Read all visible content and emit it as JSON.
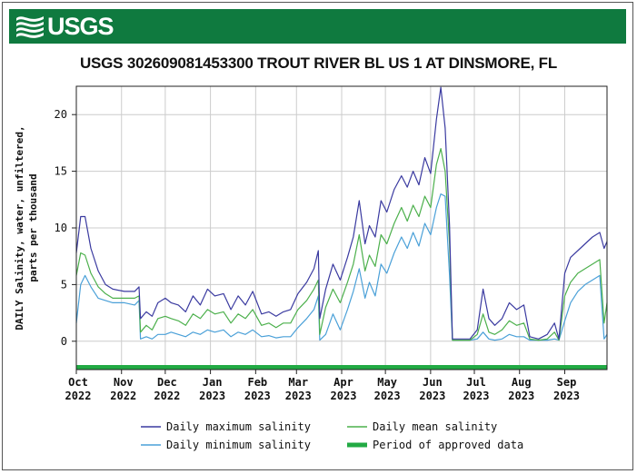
{
  "header": {
    "agency": "USGS",
    "logo_icon": "usgs-wave-logo-icon",
    "bar_color": "#0f7a3f"
  },
  "chart_data": {
    "type": "line",
    "title": "USGS 302609081453300 TROUT RIVER BL US 1 AT DINSMORE, FL",
    "ylabel": [
      "DAILY Salinity, water, unfiltered,",
      "parts per thousand"
    ],
    "xlabel": "",
    "ylim": [
      -2.5,
      22.5
    ],
    "xlim": [
      "2022-10-01",
      "2023-09-30"
    ],
    "grid": true,
    "yticks": [
      0,
      5,
      10,
      15,
      20
    ],
    "xticks": [
      {
        "date": "2022-10-01",
        "month": "Oct",
        "year": "2022"
      },
      {
        "date": "2022-11-01",
        "month": "Nov",
        "year": "2022"
      },
      {
        "date": "2022-12-01",
        "month": "Dec",
        "year": "2022"
      },
      {
        "date": "2023-01-01",
        "month": "Jan",
        "year": "2023"
      },
      {
        "date": "2023-02-01",
        "month": "Feb",
        "year": "2023"
      },
      {
        "date": "2023-03-01",
        "month": "Mar",
        "year": "2023"
      },
      {
        "date": "2023-04-01",
        "month": "Apr",
        "year": "2023"
      },
      {
        "date": "2023-05-01",
        "month": "May",
        "year": "2023"
      },
      {
        "date": "2023-06-01",
        "month": "Jun",
        "year": "2023"
      },
      {
        "date": "2023-07-01",
        "month": "Jul",
        "year": "2023"
      },
      {
        "date": "2023-08-01",
        "month": "Aug",
        "year": "2023"
      },
      {
        "date": "2023-09-01",
        "month": "Sep",
        "year": "2023"
      }
    ],
    "series": [
      {
        "name": "Daily maximum salinity",
        "color": "#3a3aa0",
        "points": [
          [
            "2022-10-01",
            7.8
          ],
          [
            "2022-10-04",
            11.0
          ],
          [
            "2022-10-07",
            11.0
          ],
          [
            "2022-10-11",
            8.2
          ],
          [
            "2022-10-16",
            6.2
          ],
          [
            "2022-10-21",
            5.0
          ],
          [
            "2022-10-26",
            4.6
          ],
          [
            "2022-11-03",
            4.4
          ],
          [
            "2022-11-10",
            4.4
          ],
          [
            "2022-11-13",
            4.8
          ],
          [
            "2022-11-14",
            2.0
          ],
          [
            "2022-11-18",
            2.6
          ],
          [
            "2022-11-22",
            2.2
          ],
          [
            "2022-11-26",
            3.4
          ],
          [
            "2022-12-01",
            3.8
          ],
          [
            "2022-12-05",
            3.4
          ],
          [
            "2022-12-10",
            3.2
          ],
          [
            "2022-12-15",
            2.6
          ],
          [
            "2022-12-20",
            4.0
          ],
          [
            "2022-12-25",
            3.2
          ],
          [
            "2022-12-30",
            4.6
          ],
          [
            "2023-01-04",
            4.0
          ],
          [
            "2023-01-10",
            4.2
          ],
          [
            "2023-01-15",
            2.8
          ],
          [
            "2023-01-20",
            4.0
          ],
          [
            "2023-01-25",
            3.2
          ],
          [
            "2023-01-30",
            4.4
          ],
          [
            "2023-02-05",
            2.4
          ],
          [
            "2023-02-10",
            2.6
          ],
          [
            "2023-02-15",
            2.2
          ],
          [
            "2023-02-20",
            2.6
          ],
          [
            "2023-02-25",
            2.8
          ],
          [
            "2023-03-02",
            4.2
          ],
          [
            "2023-03-08",
            5.2
          ],
          [
            "2023-03-13",
            6.4
          ],
          [
            "2023-03-16",
            8.0
          ],
          [
            "2023-03-17",
            2.0
          ],
          [
            "2023-03-21",
            4.6
          ],
          [
            "2023-03-26",
            6.8
          ],
          [
            "2023-03-31",
            5.4
          ],
          [
            "2023-04-05",
            7.4
          ],
          [
            "2023-04-09",
            9.2
          ],
          [
            "2023-04-13",
            12.4
          ],
          [
            "2023-04-17",
            8.6
          ],
          [
            "2023-04-20",
            10.2
          ],
          [
            "2023-04-24",
            9.2
          ],
          [
            "2023-04-28",
            12.4
          ],
          [
            "2023-05-02",
            11.4
          ],
          [
            "2023-05-07",
            13.4
          ],
          [
            "2023-05-12",
            14.6
          ],
          [
            "2023-05-16",
            13.6
          ],
          [
            "2023-05-20",
            15.0
          ],
          [
            "2023-05-24",
            13.8
          ],
          [
            "2023-05-28",
            16.2
          ],
          [
            "2023-06-01",
            14.8
          ],
          [
            "2023-06-05",
            19.6
          ],
          [
            "2023-06-08",
            22.4
          ],
          [
            "2023-06-11",
            18.8
          ],
          [
            "2023-06-14",
            10.2
          ],
          [
            "2023-06-16",
            0.2
          ],
          [
            "2023-06-22",
            0.2
          ],
          [
            "2023-06-28",
            0.2
          ],
          [
            "2023-07-03",
            1.0
          ],
          [
            "2023-07-07",
            4.6
          ],
          [
            "2023-07-11",
            2.0
          ],
          [
            "2023-07-15",
            1.4
          ],
          [
            "2023-07-20",
            2.0
          ],
          [
            "2023-07-25",
            3.4
          ],
          [
            "2023-07-30",
            2.8
          ],
          [
            "2023-08-04",
            3.2
          ],
          [
            "2023-08-08",
            0.4
          ],
          [
            "2023-08-14",
            0.2
          ],
          [
            "2023-08-20",
            0.6
          ],
          [
            "2023-08-25",
            1.6
          ],
          [
            "2023-08-28",
            0.2
          ],
          [
            "2023-09-01",
            6.0
          ],
          [
            "2023-09-05",
            7.4
          ],
          [
            "2023-09-10",
            8.0
          ],
          [
            "2023-09-15",
            8.6
          ],
          [
            "2023-09-20",
            9.2
          ],
          [
            "2023-09-25",
            9.6
          ],
          [
            "2023-09-28",
            8.2
          ],
          [
            "2023-09-30",
            8.8
          ]
        ]
      },
      {
        "name": "Daily mean salinity",
        "color": "#4cb04c",
        "points": [
          [
            "2022-10-01",
            5.8
          ],
          [
            "2022-10-04",
            7.8
          ],
          [
            "2022-10-07",
            7.6
          ],
          [
            "2022-10-11",
            6.0
          ],
          [
            "2022-10-16",
            4.8
          ],
          [
            "2022-10-21",
            4.2
          ],
          [
            "2022-10-26",
            3.8
          ],
          [
            "2022-11-03",
            3.8
          ],
          [
            "2022-11-10",
            3.8
          ],
          [
            "2022-11-13",
            4.0
          ],
          [
            "2022-11-14",
            0.8
          ],
          [
            "2022-11-18",
            1.4
          ],
          [
            "2022-11-22",
            1.0
          ],
          [
            "2022-11-26",
            2.0
          ],
          [
            "2022-12-01",
            2.2
          ],
          [
            "2022-12-05",
            2.0
          ],
          [
            "2022-12-10",
            1.8
          ],
          [
            "2022-12-15",
            1.4
          ],
          [
            "2022-12-20",
            2.4
          ],
          [
            "2022-12-25",
            2.0
          ],
          [
            "2022-12-30",
            2.8
          ],
          [
            "2023-01-04",
            2.4
          ],
          [
            "2023-01-10",
            2.6
          ],
          [
            "2023-01-15",
            1.6
          ],
          [
            "2023-01-20",
            2.4
          ],
          [
            "2023-01-25",
            2.0
          ],
          [
            "2023-01-30",
            2.8
          ],
          [
            "2023-02-05",
            1.4
          ],
          [
            "2023-02-10",
            1.6
          ],
          [
            "2023-02-15",
            1.2
          ],
          [
            "2023-02-20",
            1.6
          ],
          [
            "2023-02-25",
            1.6
          ],
          [
            "2023-03-02",
            2.8
          ],
          [
            "2023-03-08",
            3.6
          ],
          [
            "2023-03-13",
            4.6
          ],
          [
            "2023-03-16",
            5.4
          ],
          [
            "2023-03-17",
            0.6
          ],
          [
            "2023-03-21",
            3.0
          ],
          [
            "2023-03-26",
            4.6
          ],
          [
            "2023-03-31",
            3.4
          ],
          [
            "2023-04-05",
            5.2
          ],
          [
            "2023-04-09",
            6.8
          ],
          [
            "2023-04-13",
            9.4
          ],
          [
            "2023-04-17",
            6.2
          ],
          [
            "2023-04-20",
            7.6
          ],
          [
            "2023-04-24",
            6.6
          ],
          [
            "2023-04-28",
            9.4
          ],
          [
            "2023-05-02",
            8.6
          ],
          [
            "2023-05-07",
            10.4
          ],
          [
            "2023-05-12",
            11.8
          ],
          [
            "2023-05-16",
            10.6
          ],
          [
            "2023-05-20",
            12.0
          ],
          [
            "2023-05-24",
            11.0
          ],
          [
            "2023-05-28",
            12.8
          ],
          [
            "2023-06-01",
            11.8
          ],
          [
            "2023-06-05",
            15.6
          ],
          [
            "2023-06-08",
            17.0
          ],
          [
            "2023-06-11",
            15.0
          ],
          [
            "2023-06-14",
            8.6
          ],
          [
            "2023-06-16",
            0.1
          ],
          [
            "2023-06-22",
            0.1
          ],
          [
            "2023-06-28",
            0.1
          ],
          [
            "2023-07-03",
            0.6
          ],
          [
            "2023-07-07",
            2.4
          ],
          [
            "2023-07-11",
            0.8
          ],
          [
            "2023-07-15",
            0.6
          ],
          [
            "2023-07-20",
            1.0
          ],
          [
            "2023-07-25",
            1.8
          ],
          [
            "2023-07-30",
            1.4
          ],
          [
            "2023-08-04",
            1.6
          ],
          [
            "2023-08-08",
            0.2
          ],
          [
            "2023-08-14",
            0.1
          ],
          [
            "2023-08-20",
            0.2
          ],
          [
            "2023-08-25",
            0.8
          ],
          [
            "2023-08-28",
            0.1
          ],
          [
            "2023-09-01",
            4.0
          ],
          [
            "2023-09-05",
            5.2
          ],
          [
            "2023-09-10",
            6.0
          ],
          [
            "2023-09-15",
            6.4
          ],
          [
            "2023-09-20",
            6.8
          ],
          [
            "2023-09-25",
            7.2
          ],
          [
            "2023-09-28",
            1.6
          ],
          [
            "2023-09-30",
            3.4
          ]
        ]
      },
      {
        "name": "Daily minimum salinity",
        "color": "#4aa0d8",
        "points": [
          [
            "2022-10-01",
            1.6
          ],
          [
            "2022-10-04",
            5.0
          ],
          [
            "2022-10-07",
            5.8
          ],
          [
            "2022-10-11",
            4.8
          ],
          [
            "2022-10-16",
            3.8
          ],
          [
            "2022-10-21",
            3.6
          ],
          [
            "2022-10-26",
            3.4
          ],
          [
            "2022-11-03",
            3.4
          ],
          [
            "2022-11-10",
            3.2
          ],
          [
            "2022-11-13",
            3.6
          ],
          [
            "2022-11-14",
            0.2
          ],
          [
            "2022-11-18",
            0.4
          ],
          [
            "2022-11-22",
            0.2
          ],
          [
            "2022-11-26",
            0.6
          ],
          [
            "2022-12-01",
            0.6
          ],
          [
            "2022-12-05",
            0.8
          ],
          [
            "2022-12-10",
            0.6
          ],
          [
            "2022-12-15",
            0.4
          ],
          [
            "2022-12-20",
            0.8
          ],
          [
            "2022-12-25",
            0.6
          ],
          [
            "2022-12-30",
            1.0
          ],
          [
            "2023-01-04",
            0.8
          ],
          [
            "2023-01-10",
            1.0
          ],
          [
            "2023-01-15",
            0.4
          ],
          [
            "2023-01-20",
            0.8
          ],
          [
            "2023-01-25",
            0.6
          ],
          [
            "2023-01-30",
            1.0
          ],
          [
            "2023-02-05",
            0.4
          ],
          [
            "2023-02-10",
            0.5
          ],
          [
            "2023-02-15",
            0.3
          ],
          [
            "2023-02-20",
            0.4
          ],
          [
            "2023-02-25",
            0.4
          ],
          [
            "2023-03-02",
            1.2
          ],
          [
            "2023-03-08",
            2.0
          ],
          [
            "2023-03-13",
            2.8
          ],
          [
            "2023-03-16",
            4.0
          ],
          [
            "2023-03-17",
            0.1
          ],
          [
            "2023-03-21",
            0.6
          ],
          [
            "2023-03-26",
            2.4
          ],
          [
            "2023-03-31",
            1.0
          ],
          [
            "2023-04-05",
            2.8
          ],
          [
            "2023-04-09",
            4.4
          ],
          [
            "2023-04-13",
            6.4
          ],
          [
            "2023-04-17",
            3.8
          ],
          [
            "2023-04-20",
            5.2
          ],
          [
            "2023-04-24",
            4.0
          ],
          [
            "2023-04-28",
            6.8
          ],
          [
            "2023-05-02",
            6.0
          ],
          [
            "2023-05-07",
            7.8
          ],
          [
            "2023-05-12",
            9.2
          ],
          [
            "2023-05-16",
            8.2
          ],
          [
            "2023-05-20",
            9.6
          ],
          [
            "2023-05-24",
            8.4
          ],
          [
            "2023-05-28",
            10.4
          ],
          [
            "2023-06-01",
            9.4
          ],
          [
            "2023-06-05",
            11.8
          ],
          [
            "2023-06-08",
            13.0
          ],
          [
            "2023-06-11",
            12.8
          ],
          [
            "2023-06-14",
            5.8
          ],
          [
            "2023-06-16",
            0.1
          ],
          [
            "2023-06-22",
            0.1
          ],
          [
            "2023-06-28",
            0.1
          ],
          [
            "2023-07-03",
            0.2
          ],
          [
            "2023-07-07",
            0.8
          ],
          [
            "2023-07-11",
            0.2
          ],
          [
            "2023-07-15",
            0.1
          ],
          [
            "2023-07-20",
            0.2
          ],
          [
            "2023-07-25",
            0.6
          ],
          [
            "2023-07-30",
            0.4
          ],
          [
            "2023-08-04",
            0.4
          ],
          [
            "2023-08-08",
            0.1
          ],
          [
            "2023-08-14",
            0.1
          ],
          [
            "2023-08-20",
            0.1
          ],
          [
            "2023-08-25",
            0.2
          ],
          [
            "2023-08-28",
            0.1
          ],
          [
            "2023-09-01",
            1.8
          ],
          [
            "2023-09-05",
            3.4
          ],
          [
            "2023-09-10",
            4.4
          ],
          [
            "2023-09-15",
            5.0
          ],
          [
            "2023-09-20",
            5.4
          ],
          [
            "2023-09-25",
            5.8
          ],
          [
            "2023-09-28",
            0.2
          ],
          [
            "2023-09-30",
            0.6
          ]
        ]
      }
    ],
    "approved_period": {
      "name": "Period of approved data",
      "start": "2022-10-01",
      "end": "2023-09-30",
      "value": -2.3,
      "color": "#22aa44"
    },
    "legend": {
      "placement": "bottom",
      "entries": [
        {
          "label": "Daily maximum salinity",
          "color": "#3a3aa0",
          "style": "thin"
        },
        {
          "label": "Daily mean salinity",
          "color": "#4cb04c",
          "style": "thin"
        },
        {
          "label": "Daily minimum salinity",
          "color": "#4aa0d8",
          "style": "thin"
        },
        {
          "label": "Period of approved data",
          "color": "#22aa44",
          "style": "thick"
        }
      ]
    }
  }
}
